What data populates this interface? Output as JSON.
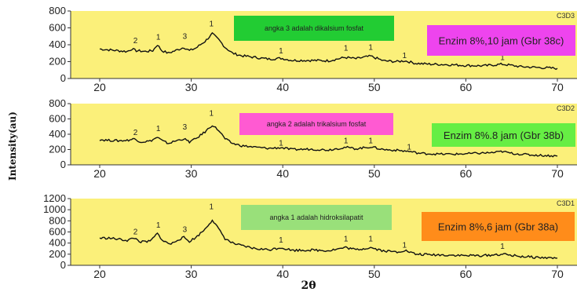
{
  "chart_data": {
    "type": "line",
    "xlabel": "2θ",
    "ylabel": "Intensity(au)",
    "x_ticks": [
      "20",
      "30",
      "40",
      "50",
      "60",
      "70"
    ],
    "xlim": [
      20,
      70
    ],
    "colors": {
      "plot_bg": "#fbf07a",
      "line": "#111111"
    },
    "panels": [
      {
        "id": "C3D3",
        "corner_label": "C3D3",
        "ylim": [
          0,
          800
        ],
        "y_ticks": [
          "0",
          "200",
          "400",
          "600",
          "800"
        ],
        "box_note": {
          "text": "angka 3 adalah dikalsium fosfat",
          "color": "#22cc33"
        },
        "box_sample": {
          "text": "Enzim 8%,10 jam (Gbr 38c)",
          "color": "#ee44ee"
        },
        "peak_labels": [
          {
            "x": 23.9,
            "y": 420,
            "label": "2"
          },
          {
            "x": 26.4,
            "y": 460,
            "label": "1"
          },
          {
            "x": 29.3,
            "y": 470,
            "label": "3"
          },
          {
            "x": 32.2,
            "y": 620,
            "label": "1"
          },
          {
            "x": 39.8,
            "y": 300,
            "label": "1"
          },
          {
            "x": 46.9,
            "y": 330,
            "label": "1"
          },
          {
            "x": 49.6,
            "y": 340,
            "label": "1"
          },
          {
            "x": 53.3,
            "y": 240,
            "label": "1"
          },
          {
            "x": 64.0,
            "y": 220,
            "label": "1"
          }
        ],
        "series": {
          "x": [
            20,
            21,
            22,
            23,
            23.5,
            24,
            25,
            25.8,
            26.3,
            26.8,
            27.5,
            28.5,
            29.2,
            29.8,
            30.5,
            31.5,
            32.3,
            33,
            33.7,
            34.5,
            35.5,
            37,
            38.5,
            39.8,
            41,
            43,
            45,
            46.8,
            48,
            49.6,
            51,
            52.5,
            53.3,
            54.5,
            56,
            58,
            60,
            62,
            64,
            66,
            68,
            70
          ],
          "y": [
            350,
            340,
            330,
            320,
            350,
            330,
            320,
            330,
            400,
            330,
            300,
            340,
            370,
            330,
            360,
            440,
            530,
            460,
            370,
            300,
            270,
            250,
            230,
            240,
            215,
            215,
            210,
            250,
            235,
            265,
            210,
            200,
            210,
            180,
            170,
            165,
            155,
            150,
            170,
            140,
            130,
            120
          ]
        }
      },
      {
        "id": "C3D2",
        "corner_label": "C3D2",
        "ylim": [
          0,
          800
        ],
        "y_ticks": [
          "0",
          "200",
          "400",
          "600",
          "800"
        ],
        "box_note": {
          "text": "angka 2 adalah trikalsium fosfat",
          "color": "#ff5ad2"
        },
        "box_sample": {
          "text": "Enzim 8%.8 jam (Gbr 38b)",
          "color": "#66ee44"
        },
        "peak_labels": [
          {
            "x": 23.9,
            "y": 390,
            "label": "2"
          },
          {
            "x": 26.4,
            "y": 440,
            "label": "1"
          },
          {
            "x": 29.3,
            "y": 460,
            "label": "3"
          },
          {
            "x": 32.2,
            "y": 640,
            "label": "1"
          },
          {
            "x": 39.8,
            "y": 250,
            "label": "1"
          },
          {
            "x": 46.9,
            "y": 280,
            "label": "1"
          },
          {
            "x": 49.6,
            "y": 280,
            "label": "1"
          },
          {
            "x": 53.8,
            "y": 200,
            "label": "1"
          },
          {
            "x": 64.0,
            "y": 240,
            "label": "1"
          }
        ],
        "series": {
          "x": [
            20,
            21,
            22,
            23,
            23.8,
            24.5,
            25.5,
            26.3,
            26.9,
            27.5,
            28.5,
            29.2,
            29.8,
            30.5,
            31.5,
            32.3,
            33,
            33.7,
            34.5,
            35.5,
            37,
            38.5,
            39.8,
            41,
            43,
            45,
            46.9,
            48,
            49.6,
            51,
            52.5,
            53.8,
            55,
            57,
            59,
            61,
            63,
            64,
            65,
            67,
            69,
            70
          ],
          "y": [
            330,
            320,
            315,
            320,
            340,
            300,
            310,
            360,
            310,
            280,
            320,
            340,
            300,
            340,
            430,
            520,
            450,
            340,
            280,
            250,
            230,
            215,
            225,
            200,
            205,
            195,
            230,
            210,
            235,
            200,
            190,
            175,
            150,
            140,
            140,
            150,
            160,
            175,
            150,
            130,
            120,
            115
          ]
        }
      },
      {
        "id": "C3D1",
        "corner_label": "C3D1",
        "ylim": [
          0,
          1200
        ],
        "y_ticks": [
          "0",
          "200",
          "400",
          "600",
          "800",
          "1000",
          "1200"
        ],
        "box_note": {
          "text": "angka 1 adalah hidroksilapatit",
          "color": "#99e07a"
        },
        "box_sample": {
          "text": "Enzim 8%,6 jam (Gbr 38a)",
          "color": "#ff8c1a"
        },
        "peak_labels": [
          {
            "x": 23.9,
            "y": 560,
            "label": "2"
          },
          {
            "x": 26.4,
            "y": 680,
            "label": "1"
          },
          {
            "x": 29.3,
            "y": 600,
            "label": "3"
          },
          {
            "x": 32.2,
            "y": 1010,
            "label": "1"
          },
          {
            "x": 39.8,
            "y": 410,
            "label": "1"
          },
          {
            "x": 46.9,
            "y": 430,
            "label": "1"
          },
          {
            "x": 49.6,
            "y": 430,
            "label": "1"
          },
          {
            "x": 53.3,
            "y": 320,
            "label": "1"
          },
          {
            "x": 64.0,
            "y": 300,
            "label": "1"
          }
        ],
        "series": {
          "x": [
            20,
            21,
            22,
            23,
            23.8,
            24.5,
            25.5,
            26.3,
            27,
            27.8,
            28.5,
            29.2,
            29.8,
            30.5,
            31.5,
            32.3,
            33,
            33.7,
            34.5,
            35.5,
            37,
            38.5,
            39.8,
            41,
            43,
            45,
            46.9,
            48,
            49.6,
            51,
            52.5,
            53.3,
            54.5,
            56,
            58,
            60,
            62,
            64,
            66,
            68,
            70
          ],
          "y": [
            490,
            490,
            470,
            450,
            490,
            420,
            430,
            570,
            430,
            380,
            460,
            500,
            430,
            500,
            650,
            820,
            650,
            480,
            400,
            350,
            300,
            280,
            320,
            270,
            275,
            265,
            320,
            280,
            320,
            260,
            240,
            270,
            200,
            190,
            185,
            175,
            175,
            200,
            160,
            140,
            130
          ]
        }
      }
    ]
  }
}
